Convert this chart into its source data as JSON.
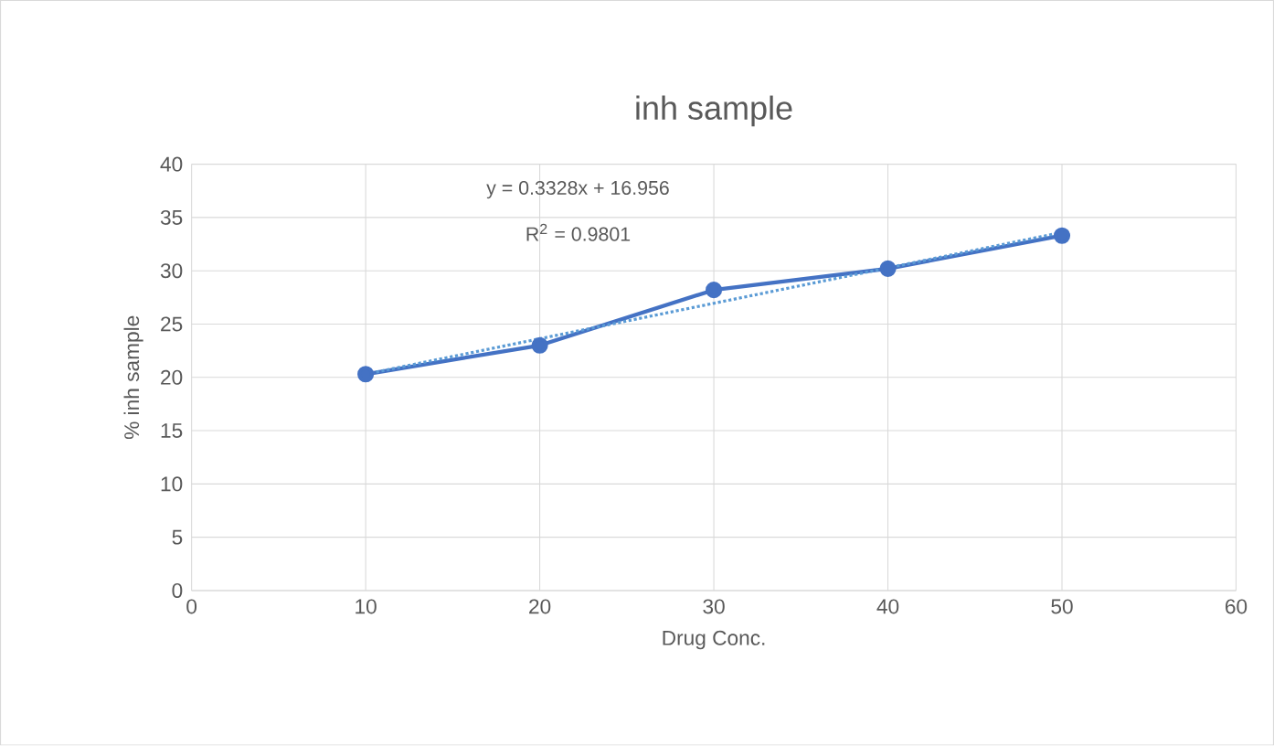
{
  "chart_data": {
    "type": "line",
    "title": "inh sample",
    "xlabel": "Drug Conc.",
    "ylabel": "% inh sample",
    "xlim": [
      0,
      60
    ],
    "xticks": [
      0,
      10,
      20,
      30,
      40,
      50,
      60
    ],
    "ylim": [
      0,
      40
    ],
    "yticks": [
      0,
      5,
      10,
      15,
      20,
      25,
      30,
      35,
      40
    ],
    "grid": true,
    "series": [
      {
        "color": "#4472c4",
        "x": [
          10,
          20,
          30,
          40,
          50
        ],
        "values": [
          20.3,
          23,
          28.2,
          30.2,
          33.3
        ],
        "marker": "circle",
        "line_style": "solid"
      },
      {
        "color": "#5b9bd5",
        "x": [
          10,
          50
        ],
        "values": [
          20.3,
          33.6
        ],
        "marker": "none",
        "line_style": "dotted"
      }
    ],
    "annotations": [
      "y = 0.3328x + 16.956",
      "R$^{2}$ = 0.9801"
    ]
  }
}
